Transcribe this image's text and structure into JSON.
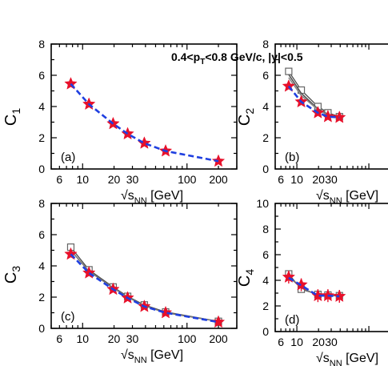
{
  "annotation": {
    "text": "0.4<p",
    "sub": "T",
    "rest": "<0.8 GeV/c, |y|<0.5"
  },
  "chart_data": [
    {
      "type": "line",
      "panel": "(a)",
      "ylabel": {
        "main": "C",
        "sub": "1"
      },
      "xlabel": {
        "main": "√s",
        "sub": "NN",
        "unit": " [GeV]"
      },
      "xscale": "log",
      "xlim": [
        5,
        300
      ],
      "ylim": [
        0,
        8
      ],
      "xticks": [
        6,
        10,
        20,
        30,
        100,
        200
      ],
      "xtick_labels": [
        "6",
        "10",
        "20",
        "30",
        "100",
        "200"
      ],
      "yticks": [
        0,
        2,
        4,
        6,
        8
      ],
      "series": [
        {
          "marker": "star",
          "color": "#e8102a",
          "x": [
            7.7,
            11.5,
            19.6,
            27,
            39,
            62.4,
            200
          ],
          "y": [
            5.45,
            4.15,
            2.9,
            2.25,
            1.65,
            1.15,
            0.5
          ]
        },
        {
          "style": "dashed",
          "color": "#1f3fe0",
          "x": [
            7.7,
            11.5,
            19.6,
            27,
            39,
            62.4,
            200
          ],
          "y": [
            5.45,
            4.15,
            2.9,
            2.25,
            1.65,
            1.15,
            0.5
          ]
        }
      ]
    },
    {
      "type": "line",
      "panel": "(b)",
      "ylabel": {
        "main": "C",
        "sub": "2"
      },
      "xlabel": {
        "main": "√s",
        "sub": "NN",
        "unit": " [GeV]"
      },
      "xscale": "log",
      "xlim": [
        5,
        300
      ],
      "ylim": [
        0,
        8
      ],
      "xticks": [
        6,
        10,
        20,
        30
      ],
      "xtick_labels": [
        "6",
        "10",
        "20",
        "30"
      ],
      "yticks": [
        0,
        2,
        4,
        6,
        8
      ],
      "series": [
        {
          "marker": "open-square",
          "color": "#666666",
          "x": [
            7.7,
            11.5,
            19.6,
            27,
            39
          ],
          "y": [
            6.25,
            5.05,
            4.0,
            3.6,
            3.35
          ]
        },
        {
          "style": "solid",
          "color": "#555555",
          "x": [
            7.7,
            11.5,
            19.6,
            27,
            39
          ],
          "y": [
            6.05,
            4.85,
            3.85,
            3.5,
            3.3
          ]
        },
        {
          "style": "solid",
          "color": "#888888",
          "x": [
            7.7,
            11.5,
            19.6,
            27,
            39
          ],
          "y": [
            5.85,
            4.7,
            3.8,
            3.45,
            3.3
          ]
        },
        {
          "marker": "star",
          "color": "#e8102a",
          "x": [
            7.7,
            11.5,
            19.6,
            27,
            39
          ],
          "y": [
            5.3,
            4.3,
            3.6,
            3.35,
            3.3
          ]
        },
        {
          "style": "dashed",
          "color": "#1f3fe0",
          "x": [
            7.7,
            11.5,
            19.6,
            27,
            39
          ],
          "y": [
            5.3,
            4.3,
            3.6,
            3.35,
            3.3
          ]
        }
      ]
    },
    {
      "type": "line",
      "panel": "(c)",
      "ylabel": {
        "main": "C",
        "sub": "3"
      },
      "xlabel": {
        "main": "√s",
        "sub": "NN",
        "unit": " [GeV]"
      },
      "xscale": "log",
      "xlim": [
        5,
        300
      ],
      "ylim": [
        0,
        8
      ],
      "xticks": [
        6,
        10,
        20,
        30,
        100,
        200
      ],
      "xtick_labels": [
        "6",
        "10",
        "20",
        "30",
        "100",
        "200"
      ],
      "yticks": [
        0,
        2,
        4,
        6,
        8
      ],
      "series": [
        {
          "marker": "open-square",
          "color": "#666666",
          "x": [
            7.7,
            11.5,
            19.6,
            27,
            39,
            62.4,
            200
          ],
          "y": [
            5.2,
            3.75,
            2.65,
            2.05,
            1.5,
            1.05,
            0.45
          ]
        },
        {
          "style": "solid",
          "color": "#777777",
          "x": [
            7.7,
            11.5,
            19.6,
            27,
            39,
            62.4,
            200
          ],
          "y": [
            5.0,
            3.65,
            2.6,
            2.0,
            1.45,
            1.0,
            0.45
          ]
        },
        {
          "marker": "star",
          "color": "#e8102a",
          "x": [
            7.7,
            11.5,
            19.6,
            27,
            39,
            62.4,
            200
          ],
          "y": [
            4.75,
            3.55,
            2.5,
            1.95,
            1.4,
            1.0,
            0.4
          ]
        },
        {
          "style": "dashed",
          "color": "#1f3fe0",
          "x": [
            7.7,
            11.5,
            19.6,
            27,
            39,
            62.4,
            200
          ],
          "y": [
            4.75,
            3.55,
            2.5,
            1.95,
            1.4,
            1.0,
            0.4
          ]
        }
      ]
    },
    {
      "type": "line",
      "panel": "(d)",
      "ylabel": {
        "main": "C",
        "sub": "4"
      },
      "xlabel": {
        "main": "√s",
        "sub": "NN",
        "unit": " [GeV]"
      },
      "xscale": "log",
      "xlim": [
        5,
        300
      ],
      "ylim": [
        0,
        10
      ],
      "xticks": [
        6,
        10,
        20,
        30
      ],
      "xtick_labels": [
        "6",
        "10",
        "20",
        "30"
      ],
      "yticks": [
        0,
        2,
        4,
        6,
        8,
        10
      ],
      "series": [
        {
          "marker": "open-square",
          "color": "#666666",
          "x": [
            7.7,
            11.5,
            19.6,
            27,
            39
          ],
          "y": [
            4.5,
            3.3,
            2.9,
            2.85,
            2.8
          ]
        },
        {
          "style": "solid",
          "color": "#777777",
          "x": [
            7.7,
            11.5,
            19.6,
            27,
            39
          ],
          "y": [
            4.3,
            3.4,
            2.85,
            2.8,
            2.8
          ]
        },
        {
          "marker": "star",
          "color": "#e8102a",
          "error": 0.5,
          "x": [
            7.7,
            11.5,
            19.6,
            27,
            39
          ],
          "y": [
            4.25,
            3.65,
            2.8,
            2.8,
            2.75
          ]
        },
        {
          "style": "dashed",
          "color": "#1f3fe0",
          "x": [
            7.7,
            11.5,
            19.6,
            27,
            39
          ],
          "y": [
            4.2,
            3.6,
            2.8,
            2.8,
            2.75
          ]
        }
      ]
    }
  ]
}
